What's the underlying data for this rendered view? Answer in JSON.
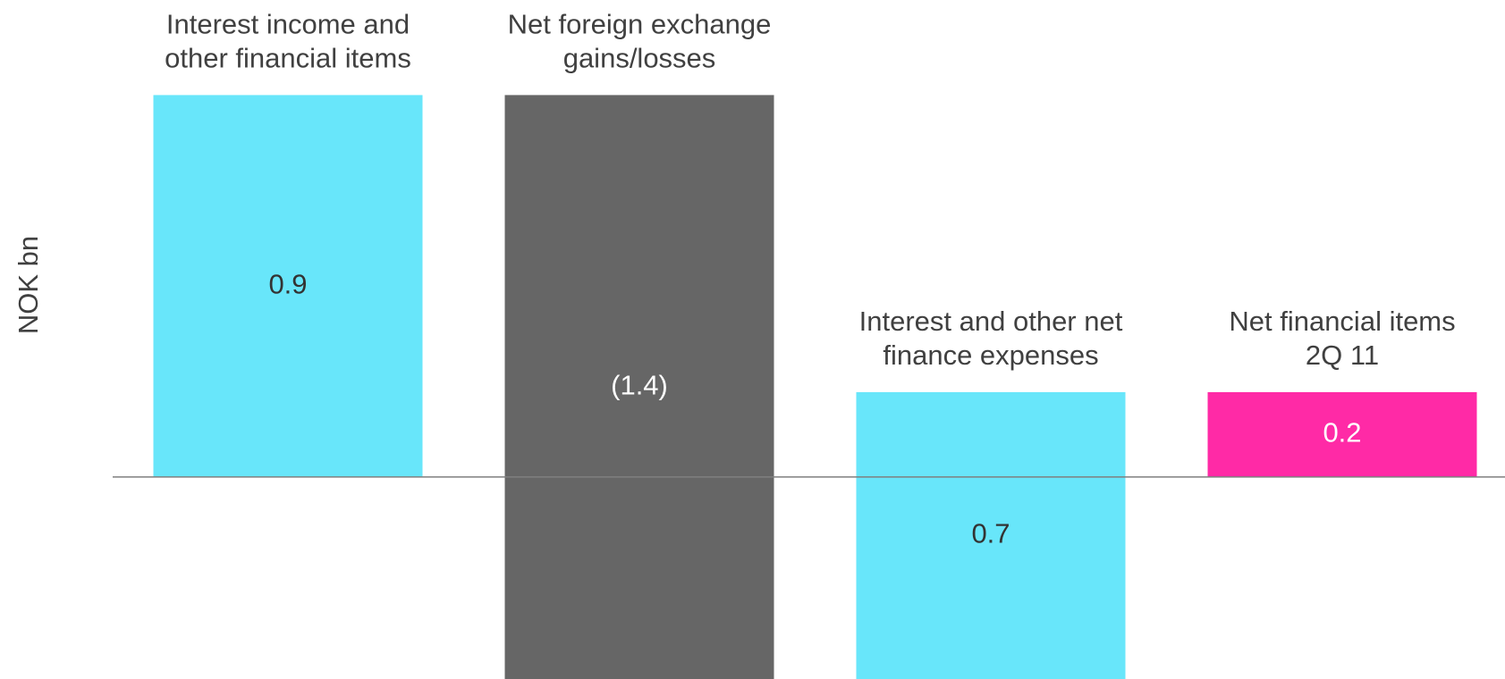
{
  "chart_data": {
    "type": "waterfall",
    "y_axis_label": "NOK bn",
    "categories": [
      [
        "Interest income and",
        "other financial items"
      ],
      [
        "Net foreign exchange",
        "gains/losses"
      ],
      [
        "Interest and other net",
        "finance expenses"
      ],
      [
        "Net financial items",
        "2Q 11"
      ]
    ],
    "values": [
      0.9,
      -1.4,
      0.7,
      0.2
    ],
    "value_labels": [
      "0.9",
      "(1.4)",
      "0.7",
      "0.2"
    ],
    "colors": [
      "#68e6fa",
      "#666666",
      "#68e6fa",
      "#ff2aa6"
    ],
    "last_is_total": true,
    "ylim": [
      -0.476,
      1.124
    ]
  }
}
